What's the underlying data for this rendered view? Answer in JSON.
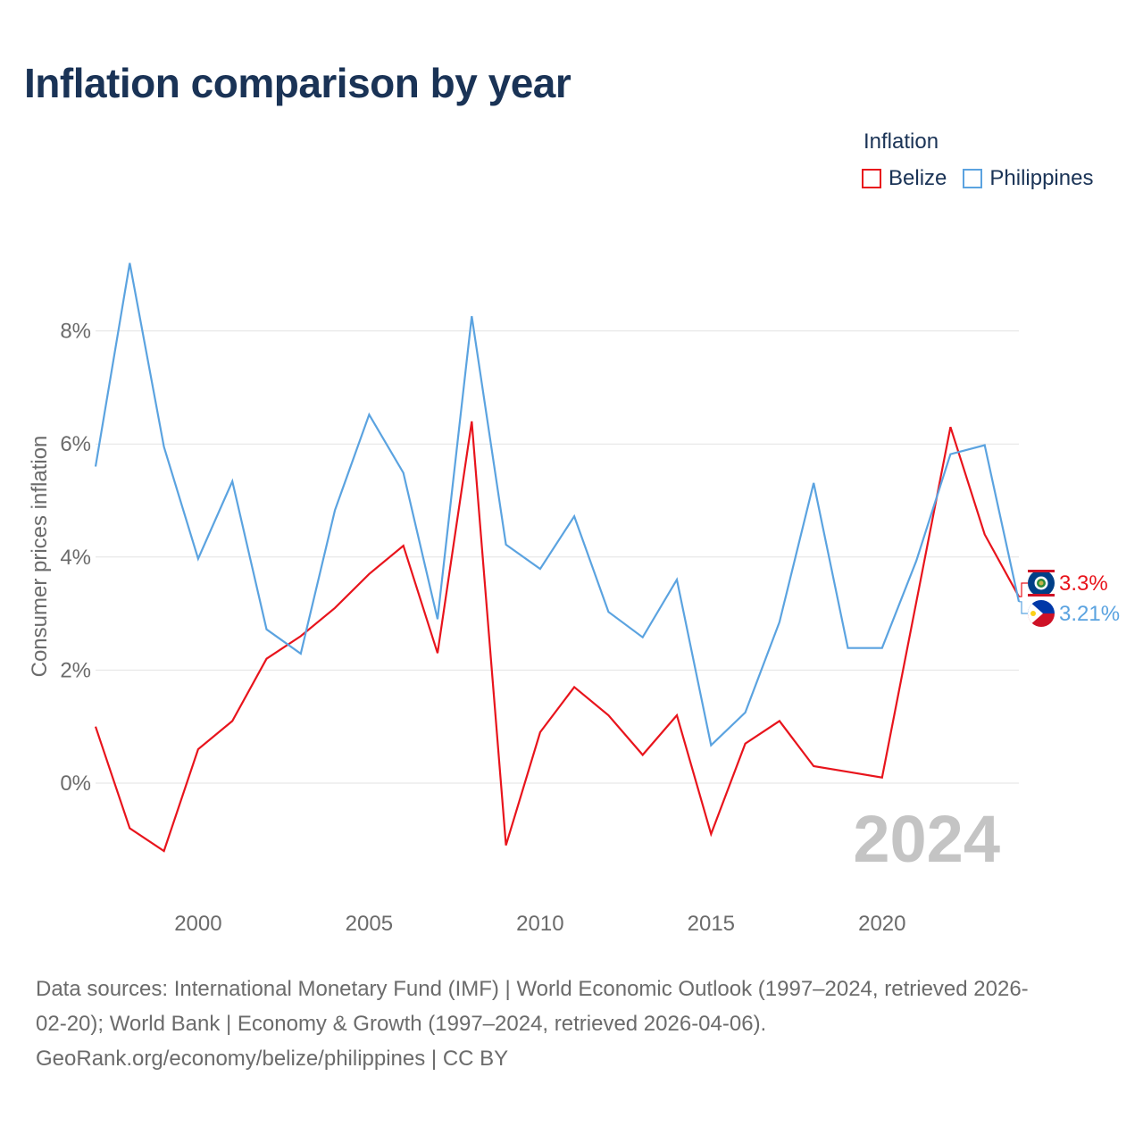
{
  "title": "Inflation comparison by year",
  "legend": {
    "title": "Inflation",
    "items": [
      {
        "label": "Belize",
        "color": "#e8141c"
      },
      {
        "label": "Philippines",
        "color": "#5ba3e0"
      }
    ]
  },
  "chart_data": {
    "type": "line",
    "title": "Inflation comparison by year",
    "xlabel": "",
    "ylabel": "Consumer prices inflation",
    "x": [
      1997,
      1998,
      1999,
      2000,
      2001,
      2002,
      2003,
      2004,
      2005,
      2006,
      2007,
      2008,
      2009,
      2010,
      2011,
      2012,
      2013,
      2014,
      2015,
      2016,
      2017,
      2018,
      2019,
      2020,
      2021,
      2022,
      2023,
      2024
    ],
    "xlim": [
      1997,
      2024
    ],
    "ylim": [
      -2,
      9
    ],
    "x_ticks": [
      "2000",
      "2005",
      "2010",
      "2015",
      "2020"
    ],
    "y_ticks": [
      "0%",
      "2%",
      "4%",
      "6%",
      "8%"
    ],
    "series": [
      {
        "name": "Belize",
        "color": "#e8141c",
        "values": [
          1.0,
          -0.8,
          -1.2,
          0.6,
          1.1,
          2.2,
          2.6,
          3.1,
          3.7,
          4.2,
          2.3,
          6.4,
          -1.1,
          0.9,
          1.7,
          1.2,
          0.5,
          1.2,
          -0.9,
          0.7,
          1.1,
          0.3,
          0.2,
          0.1,
          3.2,
          6.3,
          4.4,
          3.3
        ],
        "end_label": "3.3%"
      },
      {
        "name": "Philippines",
        "color": "#5ba3e0",
        "values": [
          5.6,
          9.2,
          5.95,
          3.97,
          5.34,
          2.72,
          2.29,
          4.83,
          6.52,
          5.49,
          2.9,
          8.26,
          4.22,
          3.79,
          4.72,
          3.03,
          2.58,
          3.6,
          0.67,
          1.25,
          2.85,
          5.31,
          2.39,
          2.39,
          3.93,
          5.82,
          5.98,
          3.21
        ],
        "end_label": "3.21%"
      }
    ],
    "year_watermark": "2024",
    "grid": true
  },
  "footer": {
    "line1": "Data sources: International Monetary Fund (IMF) | World Economic Outlook (1997–2024, retrieved 2026-",
    "line2": "02-20); World Bank | Economy & Growth (1997–2024, retrieved 2026-04-06).",
    "line3": "GeoRank.org/economy/belize/philippines | CC BY"
  }
}
